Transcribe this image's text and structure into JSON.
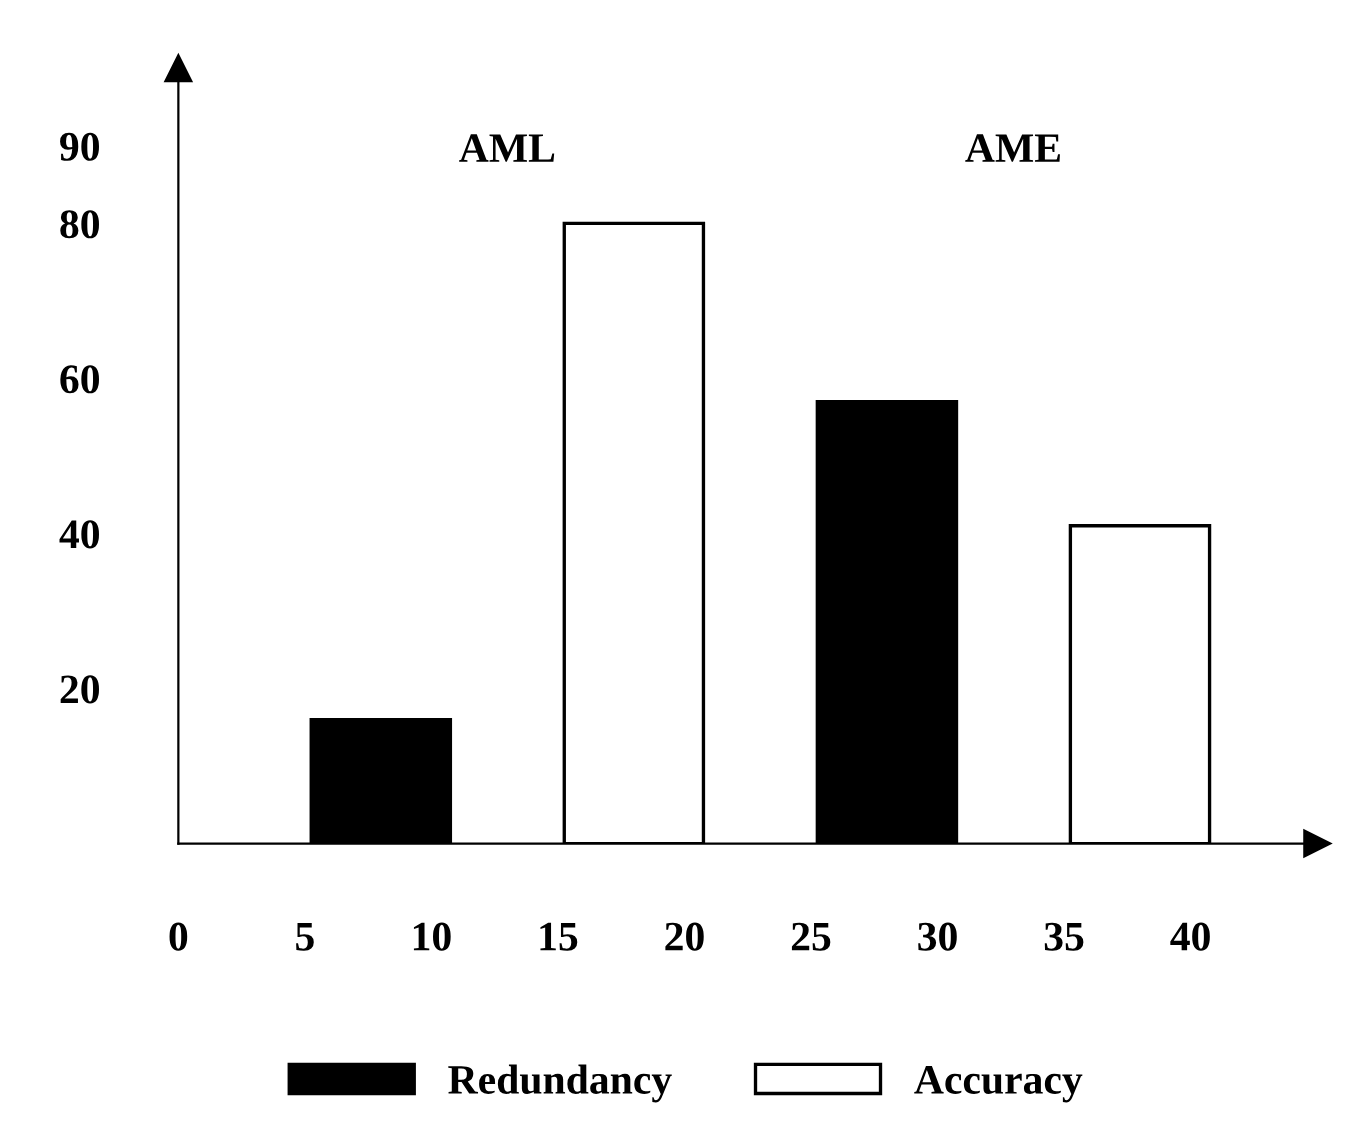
{
  "chart_data": {
    "type": "bar",
    "series": [
      {
        "name": "Redundancy",
        "color": "#000000",
        "x": [
          8,
          28
        ],
        "values": [
          16,
          57
        ]
      },
      {
        "name": "Accuracy",
        "color": "#ffffff",
        "x": [
          18,
          38
        ],
        "values": [
          80,
          41
        ]
      }
    ],
    "xlim": [
      0,
      45
    ],
    "xticks": [
      0,
      5,
      10,
      15,
      20,
      25,
      30,
      35,
      40
    ],
    "ylim": [
      0,
      100
    ],
    "yticks": [
      20,
      40,
      60,
      80,
      90
    ],
    "annotations": [
      "AML",
      "AME"
    ],
    "grid": false,
    "legend": "bottom"
  }
}
